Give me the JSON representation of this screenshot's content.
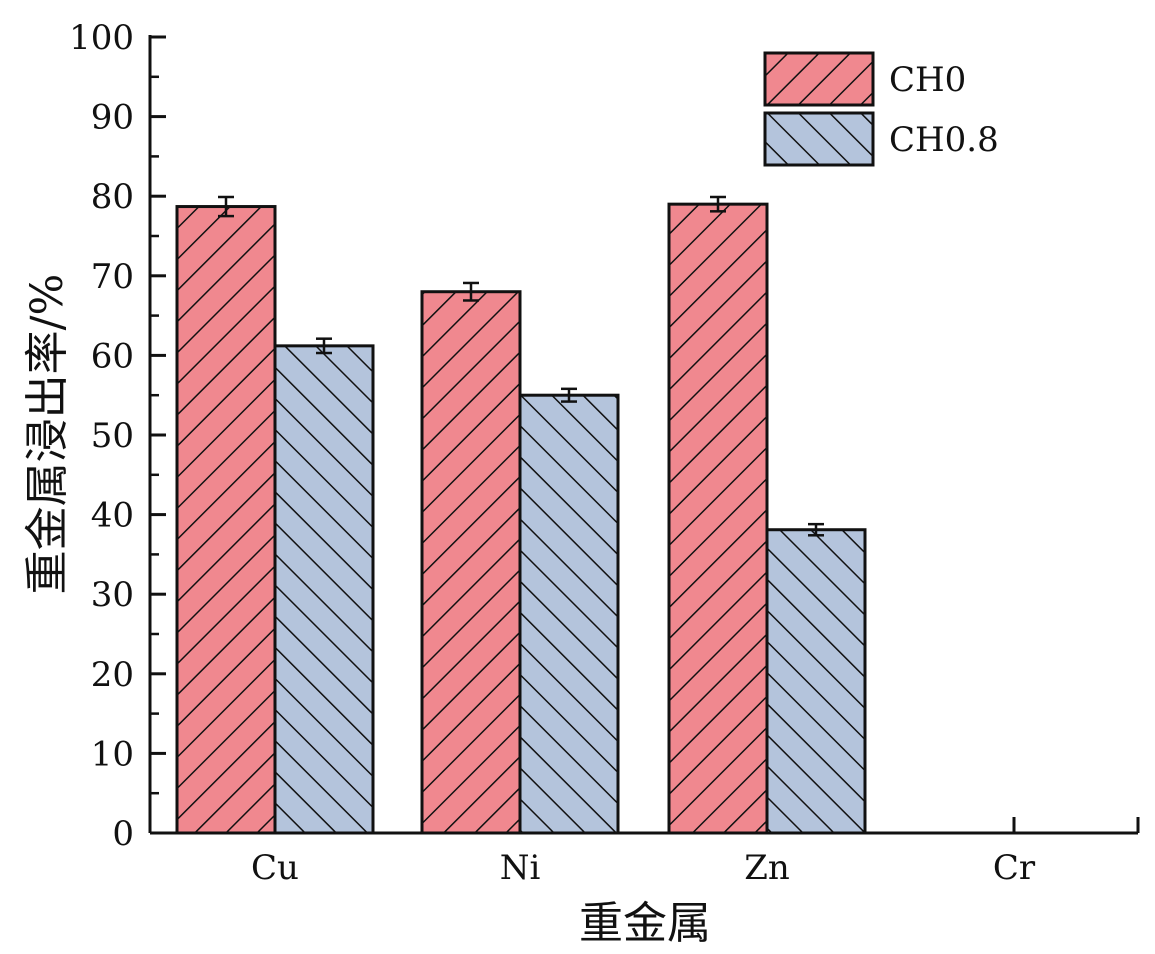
{
  "chart_data": {
    "type": "bar",
    "title": "",
    "xlabel": "重金属",
    "ylabel": "重金属浸出率/%",
    "categories": [
      "Cu",
      "Ni",
      "Zn",
      "Cr"
    ],
    "ylim": [
      0,
      100
    ],
    "yticks": [
      0,
      10,
      20,
      30,
      40,
      50,
      60,
      70,
      80,
      90,
      100
    ],
    "legend_position": "top-right",
    "grid": false,
    "series": [
      {
        "name": "CH0",
        "values": [
          78.7,
          68.0,
          79.0,
          0
        ],
        "errors": [
          1.2,
          1.1,
          0.9,
          0
        ],
        "color": "#f0888f",
        "hatch": "forward-diagonal"
      },
      {
        "name": "CH0.8",
        "values": [
          61.2,
          55.0,
          38.1,
          0
        ],
        "errors": [
          0.9,
          0.8,
          0.7,
          0
        ],
        "color": "#b4c4dc",
        "hatch": "back-diagonal"
      }
    ]
  }
}
